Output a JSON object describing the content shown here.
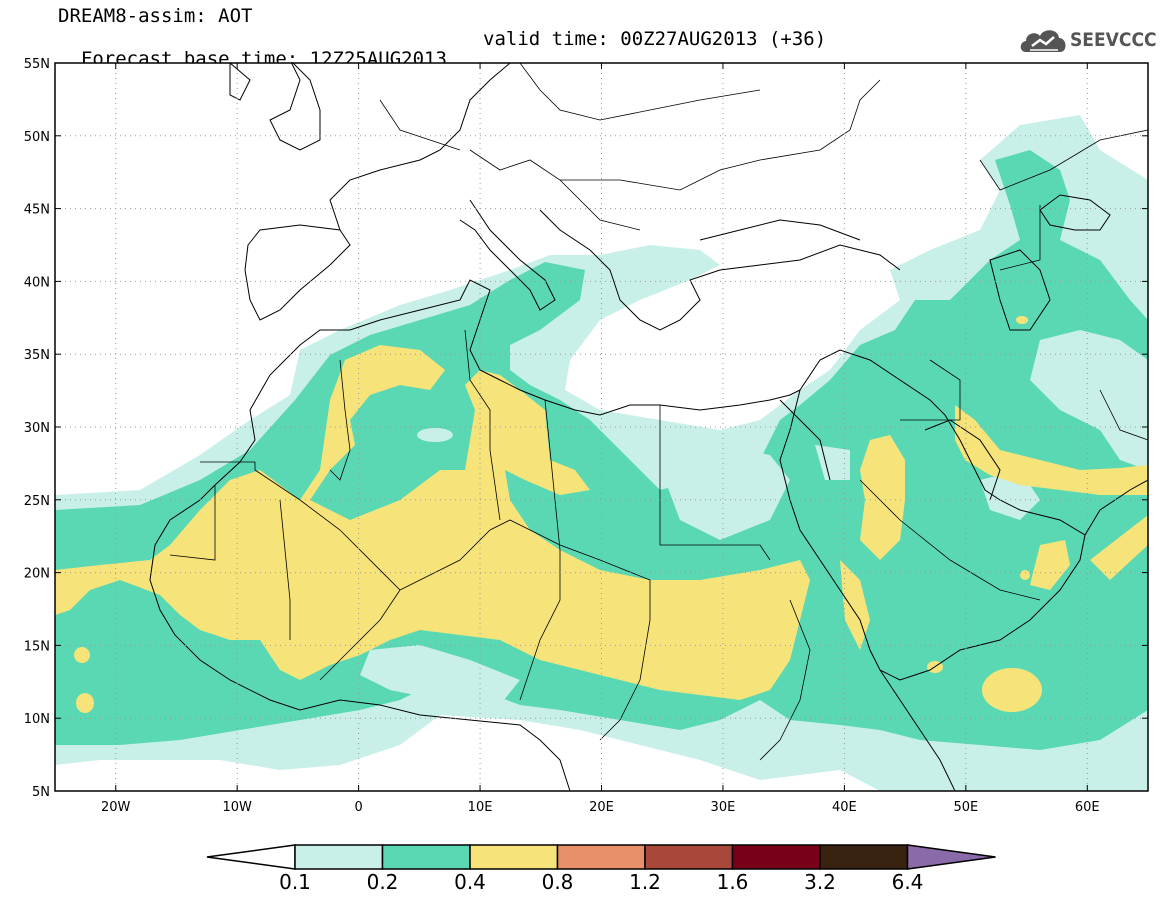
{
  "header": {
    "title_line1": "DREAM8-assim: AOT",
    "base_time": "Forecast base time: 12Z25AUG2013",
    "valid_time": "valid time: 00Z27AUG2013 (+36)"
  },
  "logo": {
    "text": "SEEVCCC",
    "icon": "cloud-icon"
  },
  "map": {
    "lon_range": [
      -25,
      65
    ],
    "lat_range": [
      5,
      55
    ],
    "lat_ticks": [
      "55N",
      "50N",
      "45N",
      "40N",
      "35N",
      "30N",
      "25N",
      "20N",
      "15N",
      "10N",
      "5N"
    ],
    "lon_ticks": [
      "20W",
      "10W",
      "0",
      "10E",
      "20E",
      "30E",
      "40E",
      "50E",
      "60E"
    ],
    "grid": "dotted",
    "variable": "Aerosol optical thickness (AOT)"
  },
  "colorbar": {
    "levels": [
      "0.1",
      "0.2",
      "0.4",
      "0.8",
      "1.2",
      "1.6",
      "3.2",
      "6.4"
    ],
    "colors": [
      "#ffffff",
      "#c8f0e8",
      "#5ad8b4",
      "#f6e47a",
      "#e8906a",
      "#a8483a",
      "#780018",
      "#3a2210",
      "#8a6aa8"
    ]
  }
}
